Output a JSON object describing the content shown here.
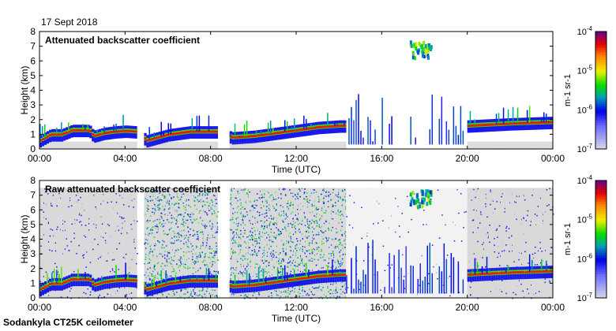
{
  "date": "17 Sept 2018",
  "footer": "Sodankyla CT25K ceilometer",
  "chart_data": [
    {
      "type": "heatmap",
      "title": "Attenuated backscatter coefficient",
      "xlabel": "Time (UTC)",
      "ylabel": "Height (km)",
      "xticks": [
        "00:00",
        "04:00",
        "08:00",
        "12:00",
        "16:00",
        "20:00",
        "00:00"
      ],
      "yticks": [
        "0",
        "1",
        "2",
        "3",
        "4",
        "5",
        "6",
        "7",
        "8"
      ],
      "xlim_hours": [
        0,
        24
      ],
      "ylim_km": [
        0,
        8
      ],
      "colorbar": {
        "label": "m-1 sr-1",
        "ticks": [
          "10-7",
          "10-6",
          "10-5",
          "10-4"
        ],
        "range_log10": [
          -7,
          -4
        ]
      },
      "boundary_layer": {
        "hours": [
          0,
          0.5,
          1,
          1.5,
          2,
          2.3,
          2.5,
          3,
          3.5,
          4,
          4.5,
          5,
          5.5,
          6,
          7,
          8,
          8.3,
          9,
          10,
          11,
          12,
          13,
          14,
          14.3,
          20,
          22,
          24
        ],
        "height_km": [
          0.6,
          1.0,
          1.0,
          1.3,
          1.3,
          1.3,
          0.9,
          1.1,
          1.2,
          1.25,
          1.2,
          0.6,
          0.8,
          1.0,
          1.2,
          1.2,
          1.2,
          0.8,
          0.9,
          1.1,
          1.3,
          1.5,
          1.6,
          1.6,
          1.6,
          1.75,
          1.85
        ]
      },
      "data_gaps_hours": [
        [
          4.55,
          4.8
        ],
        [
          8.3,
          8.85
        ]
      ],
      "aerosol_plume": {
        "hours": [
          17.3,
          18.3
        ],
        "height_km": [
          6.3,
          7.4
        ]
      },
      "raw": false
    },
    {
      "type": "heatmap",
      "title": "Raw attenuated backscatter coefficient",
      "xlabel": "Time (UTC)",
      "ylabel": "Height (km)",
      "xticks": [
        "00:00",
        "04:00",
        "08:00",
        "12:00",
        "16:00",
        "20:00",
        "00:00"
      ],
      "yticks": [
        "0",
        "1",
        "2",
        "3",
        "4",
        "5",
        "6",
        "7",
        "8"
      ],
      "xlim_hours": [
        0,
        24
      ],
      "ylim_km": [
        0,
        8
      ],
      "colorbar": {
        "label": "m-1 sr-1",
        "ticks": [
          "10-7",
          "10-6",
          "10-5",
          "10-4"
        ],
        "range_log10": [
          -7,
          -4
        ]
      },
      "raw": true
    }
  ]
}
